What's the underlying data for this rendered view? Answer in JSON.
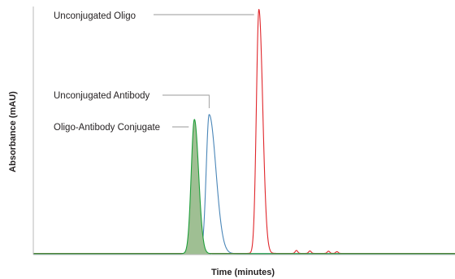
{
  "chart_data": {
    "type": "line",
    "title": "",
    "xlabel": "Time (minutes)",
    "ylabel": "Absorbance (mAU)",
    "xlim": [
      0,
      100
    ],
    "ylim": [
      0,
      100
    ],
    "grid": false,
    "legend": "none",
    "series": [
      {
        "key": "antibody",
        "color": "#4a86b8",
        "filled": false,
        "peak": {
          "x": 41.7,
          "height": 57,
          "width_left": 0.7,
          "width_right": 1.6
        },
        "baseline": 0.4
      },
      {
        "key": "oligo",
        "color": "#e0262b",
        "filled": false,
        "peak": {
          "x": 53.5,
          "height": 100,
          "width_left": 0.6,
          "width_right": 0.9
        },
        "minor_peaks": [
          {
            "x": 62.4,
            "height": 1.2,
            "width": 0.3
          },
          {
            "x": 65.6,
            "height": 1.0,
            "width": 0.3
          },
          {
            "x": 70.0,
            "height": 0.9,
            "width": 0.3
          },
          {
            "x": 72.0,
            "height": 0.7,
            "width": 0.3
          }
        ],
        "baseline": 0.5
      },
      {
        "key": "conjugate",
        "color": "#1e9e3a",
        "fill_color": "#9fbf93",
        "filled": true,
        "peak": {
          "x": 38.2,
          "height": 55,
          "width_left": 0.75,
          "width_right": 1.0
        },
        "baseline": 0.4
      }
    ],
    "annotations": [
      {
        "key": "oligo",
        "text": "Unconjugated Oligo",
        "x": 53.5,
        "y": 100
      },
      {
        "key": "antibody",
        "text": "Unconjugated Antibody",
        "x": 41.7,
        "y": 57
      },
      {
        "key": "conjugate",
        "text": "Oligo-Antibody Conjugate",
        "x": 38.2,
        "y": 55
      }
    ]
  }
}
